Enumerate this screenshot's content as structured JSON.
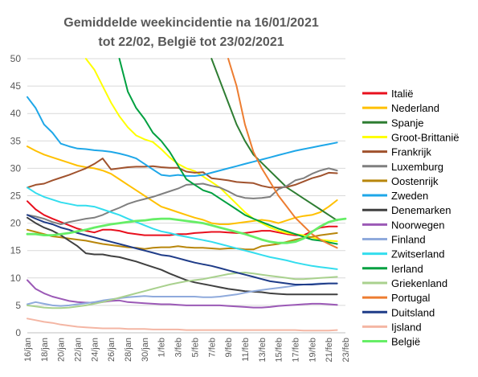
{
  "chart_data": {
    "type": "line",
    "title": "Gemiddelde weekincidentie  na 16/01/2021 tot 22/02, België tot 23/02/2021",
    "title_lines": [
      "Gemiddelde weekincidentie  na 16/01/2021",
      "tot 22/02, België tot 23/02/2021"
    ],
    "xlabel": "",
    "ylabel": "",
    "ylim": [
      0,
      50
    ],
    "y_ticks": [
      "0",
      "5",
      "10",
      "15",
      "20",
      "25",
      "30",
      "35",
      "40",
      "45",
      "50"
    ],
    "x_ticks": [
      "16/jan",
      "18/jan",
      "20/jan",
      "22/jan",
      "24/jan",
      "26/jan",
      "28/jan",
      "30/jan",
      "1/feb",
      "3/feb",
      "5/feb",
      "7/feb",
      "9/feb",
      "11/feb",
      "13/feb",
      "15/feb",
      "17/feb",
      "19/feb",
      "21/feb",
      "23/feb"
    ],
    "grid": true,
    "legend_position": "right",
    "series": [
      {
        "name": "Italië",
        "color": "#e8101e",
        "width": 2,
        "values": [
          24,
          22.5,
          21.5,
          20.8,
          20.2,
          19.6,
          19,
          18.6,
          18.3,
          18.8,
          18.8,
          18.6,
          18.2,
          18,
          17.8,
          17.8,
          17.8,
          17.8,
          18,
          18,
          18.2,
          18.3,
          18.4,
          18.4,
          18.3,
          18.2,
          18.2,
          18.4,
          18.6,
          18.6,
          18.3,
          18,
          17.8,
          17.8,
          18.5,
          19.2,
          19.4,
          19.4
        ]
      },
      {
        "name": "Nederland",
        "color": "#ffc000",
        "width": 2,
        "values": [
          34,
          33.2,
          32.5,
          32,
          31.5,
          31,
          30.5,
          30.2,
          30,
          29.6,
          29,
          28,
          27,
          26,
          25,
          24,
          23,
          22.5,
          22,
          21.5,
          21,
          20.6,
          20,
          19.8,
          19.8,
          20,
          20.2,
          20.4,
          20.6,
          20.4,
          20,
          20.5,
          21,
          21.3,
          21.5,
          22,
          23,
          24.2
        ]
      },
      {
        "name": "Spanje",
        "color": "#2e7d32",
        "width": 2,
        "values": [
          null,
          null,
          null,
          null,
          null,
          null,
          null,
          null,
          null,
          null,
          null,
          null,
          null,
          null,
          null,
          null,
          null,
          null,
          null,
          null,
          null,
          null,
          50,
          46,
          42,
          38,
          35,
          32.5,
          31,
          29.5,
          28,
          26.5,
          25.5,
          24.5,
          23.5,
          22.5,
          21.5,
          20.5
        ]
      },
      {
        "name": "Groot-Brittanië",
        "color": "#ffff00",
        "width": 2,
        "values": [
          null,
          null,
          null,
          null,
          null,
          null,
          null,
          50,
          48,
          45,
          42,
          39.5,
          37.5,
          36,
          35.3,
          34.8,
          33.5,
          32,
          30.8,
          30,
          29.5,
          28.5,
          27.5,
          26.5,
          25,
          23.5,
          22,
          20.8,
          20,
          19.2,
          18.6,
          18.2,
          18,
          17.8,
          17.4,
          17,
          16.8,
          16.7
        ]
      },
      {
        "name": "Frankrijk",
        "color": "#a0522d",
        "width": 2,
        "values": [
          26.5,
          27,
          27.2,
          27.8,
          28.3,
          28.8,
          29.4,
          30,
          30.8,
          31.8,
          29.8,
          30,
          30.2,
          30.3,
          30.3,
          30.4,
          30.2,
          30.1,
          30.1,
          29.4,
          29.2,
          29.3,
          28.2,
          28,
          27.8,
          27.5,
          27.4,
          27.3,
          26.8,
          26.5,
          26.5,
          26.6,
          27,
          27.6,
          28.2,
          28.6,
          29.2,
          29.1
        ]
      },
      {
        "name": "Luxemburg",
        "color": "#7f7f7f",
        "width": 2,
        "values": [
          21.5,
          21.2,
          20.8,
          20.2,
          19.8,
          20.2,
          20.5,
          20.8,
          21,
          21.5,
          22.2,
          22.8,
          23.5,
          24,
          24.4,
          24.8,
          25.3,
          25.8,
          26.3,
          27,
          27.1,
          27.2,
          26.8,
          26.5,
          25.8,
          25,
          24.6,
          24.5,
          24.6,
          24.8,
          26.2,
          26.8,
          27.8,
          28.2,
          29,
          29.6,
          30,
          29.6
        ]
      },
      {
        "name": "Oostenrijk",
        "color": "#b8860b",
        "width": 2,
        "values": [
          18.8,
          18.4,
          18,
          17.6,
          17.4,
          17.2,
          17,
          16.8,
          16.5,
          16.2,
          16,
          15.8,
          15.6,
          15.5,
          15.3,
          15.5,
          15.6,
          15.6,
          15.8,
          15.6,
          15.5,
          15.5,
          15.4,
          15.3,
          15.4,
          15.4,
          15.2,
          15.2,
          15.8,
          16,
          16.2,
          16.6,
          17,
          17.3,
          17.5,
          17.8,
          18,
          18.2
        ]
      },
      {
        "name": "Zweden",
        "color": "#1ea7e8",
        "width": 2,
        "values": [
          43,
          41,
          38,
          36.5,
          34.5,
          34,
          33.6,
          33.5,
          33.3,
          33.2,
          33,
          32.7,
          32.3,
          31.8,
          30.8,
          29.8,
          28.8,
          28.6,
          28.8,
          28.6,
          28.6,
          28.8,
          29.2,
          29.6,
          30,
          30.4,
          30.8,
          31.2,
          31.6,
          32,
          32.4,
          32.8,
          33.2,
          33.5,
          33.8,
          34.1,
          34.4,
          34.7
        ]
      },
      {
        "name": "Denemarken",
        "color": "#404040",
        "width": 2,
        "values": [
          21,
          20,
          19.2,
          18.6,
          17.8,
          16.8,
          15.8,
          14.5,
          14.3,
          14.3,
          14,
          13.8,
          13.4,
          13,
          12.5,
          12,
          11.5,
          10.8,
          10.2,
          9.6,
          9.2,
          8.9,
          8.6,
          8.3,
          8,
          7.8,
          7.6,
          7.5,
          7.4,
          7.2,
          7.1,
          7,
          7,
          7,
          7,
          7,
          7,
          7
        ]
      },
      {
        "name": "Noorwegen",
        "color": "#9b59b6",
        "width": 2,
        "values": [
          9.6,
          8,
          7.2,
          6.6,
          6.2,
          5.8,
          5.6,
          5.5,
          5.5,
          5.6,
          5.8,
          5.9,
          5.6,
          5.5,
          5.4,
          5.3,
          5.2,
          5.2,
          5.1,
          5,
          5,
          5,
          5,
          5,
          4.9,
          4.8,
          4.7,
          4.6,
          4.6,
          4.7,
          4.9,
          5,
          5.1,
          5.2,
          5.3,
          5.3,
          5.2,
          5.1
        ]
      },
      {
        "name": "Finland",
        "color": "#8faadc",
        "width": 2,
        "values": [
          5.2,
          5.6,
          5.3,
          5,
          4.9,
          5,
          5.2,
          5.4,
          5.6,
          5.9,
          6.1,
          6.3,
          6.5,
          6.6,
          6.7,
          6.6,
          6.6,
          6.6,
          6.6,
          6.6,
          6.6,
          6.5,
          6.5,
          6.6,
          6.8,
          7,
          7.3,
          7.6,
          7.8,
          8,
          8.2,
          8.4,
          8.6,
          8.8,
          8.9,
          9,
          9,
          9
        ]
      },
      {
        "name": "Zwitserland",
        "color": "#33ddee",
        "width": 2,
        "values": [
          26.5,
          25.5,
          24.8,
          24.3,
          23.8,
          23.5,
          23.2,
          23.2,
          23,
          22.5,
          22,
          21.5,
          20.8,
          20.2,
          19.6,
          19,
          18.5,
          18.2,
          17.8,
          17.5,
          17.2,
          16.9,
          16.6,
          16.2,
          15.8,
          15.4,
          15,
          14.6,
          14.2,
          13.8,
          13.5,
          13.2,
          12.8,
          12.5,
          12.2,
          12,
          11.8,
          11.6
        ]
      },
      {
        "name": "Ierland",
        "color": "#00a040",
        "width": 2,
        "values": [
          null,
          null,
          null,
          null,
          null,
          null,
          null,
          null,
          null,
          null,
          null,
          50,
          44,
          41,
          39,
          36.5,
          35,
          33,
          30.5,
          28,
          27,
          26,
          25.5,
          24.5,
          23.5,
          22.5,
          21.5,
          20.8,
          20.2,
          19.6,
          19,
          18.5,
          18,
          17.5,
          17,
          16.8,
          16.5,
          16.2
        ]
      },
      {
        "name": "Griekenland",
        "color": "#a9d18e",
        "width": 2,
        "values": [
          5,
          4.8,
          4.6,
          4.5,
          4.5,
          4.6,
          4.8,
          5,
          5.3,
          5.6,
          6,
          6.4,
          6.8,
          7.2,
          7.6,
          8,
          8.4,
          8.8,
          9.1,
          9.4,
          9.6,
          9.8,
          10.1,
          10.4,
          10.7,
          10.9,
          11,
          10.8,
          10.6,
          10.4,
          10.2,
          10,
          9.8,
          9.8,
          9.9,
          10,
          10.1,
          10.2
        ]
      },
      {
        "name": "Portugal",
        "color": "#ed7d31",
        "width": 2,
        "values": [
          null,
          null,
          null,
          null,
          null,
          null,
          null,
          null,
          null,
          null,
          null,
          null,
          null,
          null,
          null,
          null,
          null,
          null,
          null,
          null,
          null,
          null,
          null,
          null,
          50,
          45,
          38,
          33,
          30,
          27.5,
          25,
          23,
          21,
          19.5,
          18,
          17,
          16.2,
          15.5
        ]
      },
      {
        "name": "Duitsland",
        "color": "#1f3c88",
        "width": 2,
        "values": [
          21.5,
          20.8,
          20.2,
          19.8,
          19.2,
          18.8,
          18.2,
          17.8,
          17.4,
          17,
          16.6,
          16.2,
          15.8,
          15.4,
          15,
          14.6,
          14.2,
          14,
          13.6,
          13.2,
          12.8,
          12.5,
          12.2,
          11.8,
          11.4,
          11,
          10.6,
          10.2,
          9.8,
          9.4,
          9.2,
          9,
          8.8,
          8.8,
          8.8,
          8.9,
          9,
          9
        ]
      },
      {
        "name": "Ijsland",
        "color": "#f4b6a4",
        "width": 2,
        "values": [
          2.6,
          2.3,
          2,
          1.8,
          1.5,
          1.3,
          1.1,
          1,
          0.9,
          0.8,
          0.8,
          0.8,
          0.7,
          0.7,
          0.7,
          0.6,
          0.6,
          0.6,
          0.6,
          0.5,
          0.5,
          0.5,
          0.5,
          0.5,
          0.5,
          0.5,
          0.5,
          0.5,
          0.5,
          0.5,
          0.5,
          0.5,
          0.5,
          0.4,
          0.4,
          0.4,
          0.4,
          0.5
        ]
      },
      {
        "name": "België",
        "color": "#66ee66",
        "width": 2.8,
        "values": [
          18,
          18,
          17.8,
          17.8,
          18,
          18.2,
          18.5,
          18.8,
          19.2,
          19.5,
          19.8,
          20,
          20.2,
          20.4,
          20.5,
          20.7,
          20.8,
          20.8,
          20.6,
          20.4,
          20.2,
          20,
          19.6,
          19.2,
          18.8,
          18.4,
          18,
          17.5,
          17,
          16.6,
          16.4,
          16.4,
          16.6,
          17.2,
          18.4,
          19.4,
          20.2,
          20.6,
          20.8
        ]
      }
    ]
  }
}
